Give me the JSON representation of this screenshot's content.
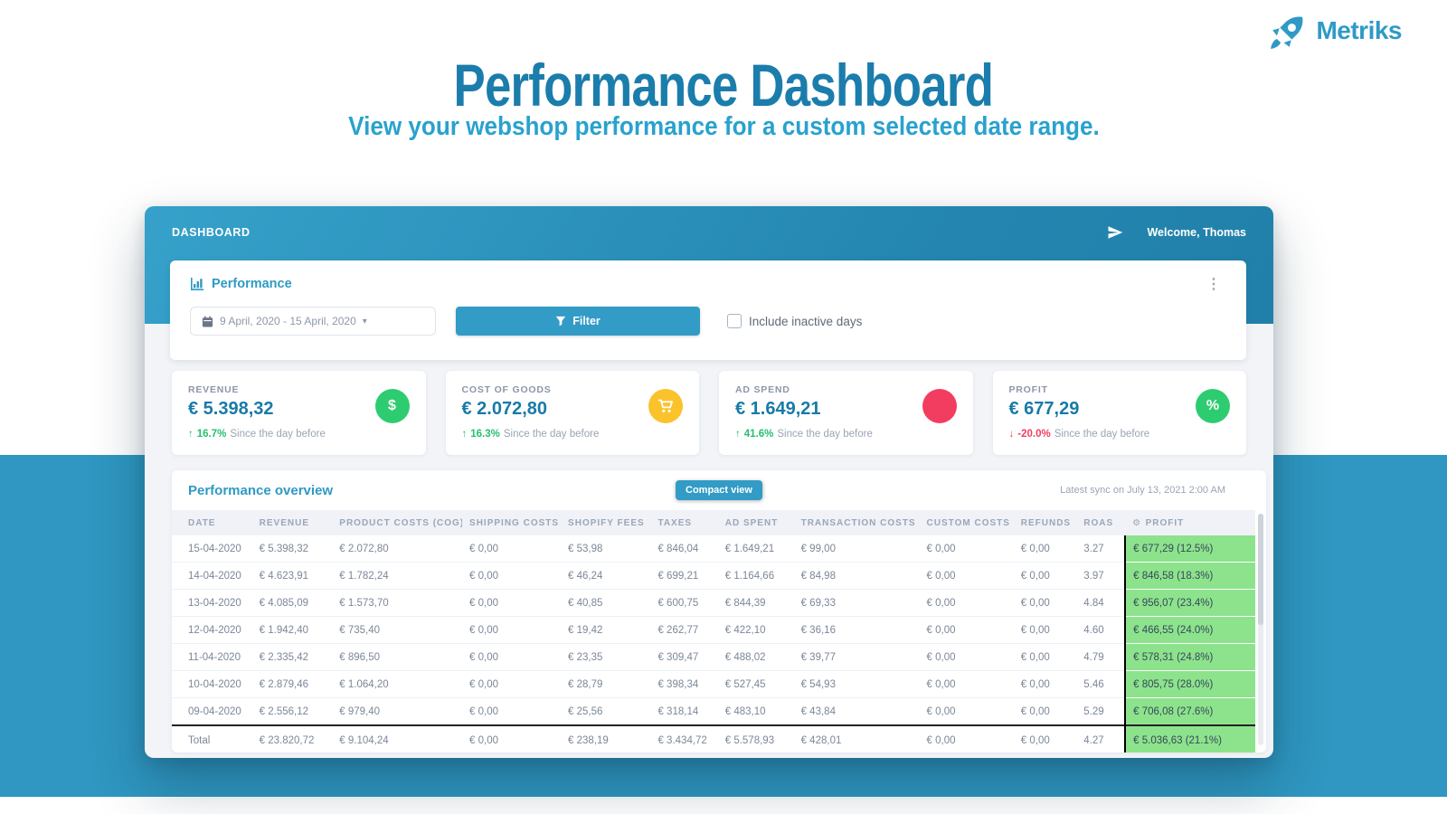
{
  "brand": {
    "name": "Metriks"
  },
  "hero": {
    "title": "Performance Dashboard",
    "subtitle": "View your webshop performance for a custom selected date range."
  },
  "navbar": {
    "title": "DASHBOARD",
    "welcome": "Welcome, Thomas"
  },
  "filter_panel": {
    "title": "Performance",
    "date_range": "9 April, 2020 - 15 April, 2020",
    "filter_label": "Filter",
    "include_label": "Include inactive days"
  },
  "kpis": [
    {
      "label": "REVENUE",
      "value": "€ 5.398,32",
      "delta": "16.7%",
      "direction": "up",
      "note": "Since the day before",
      "icon": "dollar",
      "icon_bg": "#2ecc71"
    },
    {
      "label": "COST OF GOODS",
      "value": "€ 2.072,80",
      "delta": "16.3%",
      "direction": "up",
      "note": "Since the day before",
      "icon": "cart",
      "icon_bg": "#fbc32b"
    },
    {
      "label": "AD SPEND",
      "value": "€ 1.649,21",
      "delta": "41.6%",
      "direction": "up",
      "note": "Since the day before",
      "icon": "circle",
      "icon_bg": "#f23d60"
    },
    {
      "label": "PROFIT",
      "value": "€ 677,29",
      "delta": "-20.0%",
      "direction": "down",
      "note": "Since the day before",
      "icon": "percent",
      "icon_bg": "#2ecc71"
    }
  ],
  "overview": {
    "title": "Performance overview",
    "compact_label": "Compact view",
    "sync": "Latest sync on July 13, 2021 2:00 AM"
  },
  "table": {
    "columns": [
      "DATE",
      "REVENUE",
      "PRODUCT COSTS (COG)",
      "SHIPPING COSTS",
      "SHOPIFY FEES",
      "TAXES",
      "AD SPENT",
      "TRANSACTION COSTS",
      "CUSTOM COSTS",
      "REFUNDS",
      "ROAS",
      "PROFIT"
    ],
    "rows": [
      [
        "15-04-2020",
        "€ 5.398,32",
        "€ 2.072,80",
        "€ 0,00",
        "€ 53,98",
        "€ 846,04",
        "€ 1.649,21",
        "€ 99,00",
        "€ 0,00",
        "€ 0,00",
        "3.27",
        "€ 677,29 (12.5%)"
      ],
      [
        "14-04-2020",
        "€ 4.623,91",
        "€ 1.782,24",
        "€ 0,00",
        "€ 46,24",
        "€ 699,21",
        "€ 1.164,66",
        "€ 84,98",
        "€ 0,00",
        "€ 0,00",
        "3.97",
        "€ 846,58 (18.3%)"
      ],
      [
        "13-04-2020",
        "€ 4.085,09",
        "€ 1.573,70",
        "€ 0,00",
        "€ 40,85",
        "€ 600,75",
        "€ 844,39",
        "€ 69,33",
        "€ 0,00",
        "€ 0,00",
        "4.84",
        "€ 956,07 (23.4%)"
      ],
      [
        "12-04-2020",
        "€ 1.942,40",
        "€ 735,40",
        "€ 0,00",
        "€ 19,42",
        "€ 262,77",
        "€ 422,10",
        "€ 36,16",
        "€ 0,00",
        "€ 0,00",
        "4.60",
        "€ 466,55 (24.0%)"
      ],
      [
        "11-04-2020",
        "€ 2.335,42",
        "€ 896,50",
        "€ 0,00",
        "€ 23,35",
        "€ 309,47",
        "€ 488,02",
        "€ 39,77",
        "€ 0,00",
        "€ 0,00",
        "4.79",
        "€ 578,31 (24.8%)"
      ],
      [
        "10-04-2020",
        "€ 2.879,46",
        "€ 1.064,20",
        "€ 0,00",
        "€ 28,79",
        "€ 398,34",
        "€ 527,45",
        "€ 54,93",
        "€ 0,00",
        "€ 0,00",
        "5.46",
        "€ 805,75 (28.0%)"
      ],
      [
        "09-04-2020",
        "€ 2.556,12",
        "€ 979,40",
        "€ 0,00",
        "€ 25,56",
        "€ 318,14",
        "€ 483,10",
        "€ 43,84",
        "€ 0,00",
        "€ 0,00",
        "5.29",
        "€ 706,08 (27.6%)"
      ]
    ],
    "total": [
      "Total",
      "€ 23.820,72",
      "€ 9.104,24",
      "€ 0,00",
      "€ 238,19",
      "€ 3.434,72",
      "€ 5.578,93",
      "€ 428,01",
      "€ 0,00",
      "€ 0,00",
      "4.27",
      "€ 5.036,63 (21.1%)"
    ]
  },
  "colors": {
    "band": "#2f97c1",
    "title": "#1b7dab",
    "subtitle": "#29a2ce",
    "accent_blue": "#2e9ac4",
    "positive": "#26bf70",
    "negative": "#ee3f60",
    "kpi_green": "#2ecc71",
    "kpi_yellow": "#fbc32b",
    "kpi_red": "#f23d60",
    "profit_bg": "#8ce38c"
  }
}
